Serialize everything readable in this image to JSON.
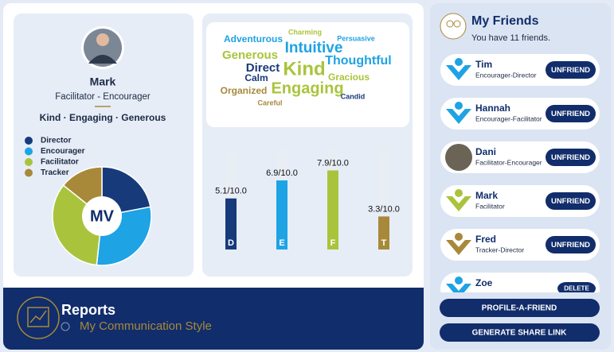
{
  "profile": {
    "name": "Mark",
    "style": "Facilitator - Encourager",
    "traits": "Kind · Engaging · Generous",
    "initials": "MV"
  },
  "chart_data": {
    "type": "bar",
    "legend": [
      "Director",
      "Encourager",
      "Facilitator",
      "Tracker"
    ],
    "categories": [
      "D",
      "E",
      "F",
      "T"
    ],
    "values": [
      5.1,
      6.9,
      7.9,
      3.3
    ],
    "value_labels": [
      "5.1/10.0",
      "6.9/10.0",
      "7.9/10.0",
      "3.3/10.0"
    ],
    "colors": [
      "#173a7a",
      "#1ea3e4",
      "#a9c43c",
      "#a8893a"
    ],
    "ylim": [
      0,
      10
    ]
  },
  "word_cloud": [
    "Charming",
    "Adventurous",
    "Persuasive",
    "Intuitive",
    "Generous",
    "Thoughtful",
    "Direct",
    "Kind",
    "Calm",
    "Gracious",
    "Organized",
    "Engaging",
    "Candid",
    "Careful"
  ],
  "reports": {
    "title": "Reports",
    "subtitle": "My Communication Style"
  },
  "friends": {
    "title": "My Friends",
    "count": "You have 11 friends.",
    "list": [
      {
        "name": "Tim",
        "role": "Encourager-Director",
        "action": "UNFRIEND"
      },
      {
        "name": "Hannah",
        "role": "Encourager-Facilitator",
        "action": "UNFRIEND"
      },
      {
        "name": "Dani",
        "role": "Facilitator-Encourager",
        "action": "UNFRIEND"
      },
      {
        "name": "Mark",
        "role": "Facilitator",
        "action": "UNFRIEND"
      },
      {
        "name": "Fred",
        "role": "Tracker-Director",
        "action": "UNFRIEND"
      },
      {
        "name": "Zoe",
        "role": "",
        "action": "DELETE"
      }
    ],
    "buttons": [
      "PROFILE-A-FRIEND",
      "GENERATE SHARE LINK"
    ]
  }
}
